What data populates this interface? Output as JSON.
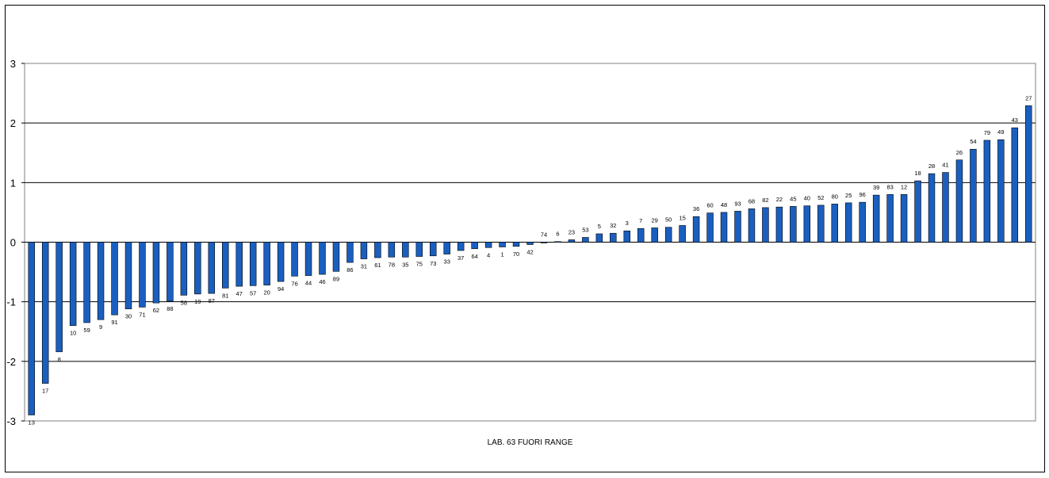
{
  "chart_data": {
    "type": "bar",
    "xlabel": "LAB. 63 FUORI RANGE",
    "ylabel": "",
    "ylim": [
      -3,
      3
    ],
    "yticks": [
      3,
      2,
      1,
      0,
      -1,
      -2,
      -3
    ],
    "grid": true,
    "bar_color": "#1a5fbf",
    "categories": [
      "13",
      "17",
      "8",
      "10",
      "59",
      "9",
      "91",
      "30",
      "71",
      "62",
      "88",
      "58",
      "19",
      "87",
      "81",
      "47",
      "57",
      "20",
      "94",
      "76",
      "44",
      "46",
      "89",
      "86",
      "31",
      "61",
      "78",
      "35",
      "75",
      "73",
      "33",
      "37",
      "64",
      "4",
      "1",
      "70",
      "42",
      "74",
      "6",
      "23",
      "53",
      "5",
      "32",
      "3",
      "7",
      "29",
      "50",
      "15",
      "36",
      "60",
      "48",
      "93",
      "68",
      "82",
      "22",
      "45",
      "40",
      "52",
      "80",
      "25",
      "96",
      "39",
      "83",
      "12",
      "18",
      "28",
      "41",
      "26",
      "54",
      "79",
      "49",
      "43",
      "27"
    ],
    "values": [
      -2.9,
      -2.37,
      -1.84,
      -1.4,
      -1.35,
      -1.3,
      -1.22,
      -1.12,
      -1.09,
      -1.02,
      -0.99,
      -0.89,
      -0.87,
      -0.86,
      -0.77,
      -0.74,
      -0.73,
      -0.72,
      -0.66,
      -0.57,
      -0.56,
      -0.54,
      -0.49,
      -0.34,
      -0.28,
      -0.26,
      -0.25,
      -0.25,
      -0.24,
      -0.23,
      -0.2,
      -0.14,
      -0.11,
      -0.09,
      -0.08,
      -0.07,
      -0.04,
      0.0,
      0.01,
      0.04,
      0.08,
      0.14,
      0.15,
      0.19,
      0.23,
      0.24,
      0.25,
      0.28,
      0.43,
      0.49,
      0.5,
      0.52,
      0.56,
      0.58,
      0.59,
      0.6,
      0.61,
      0.62,
      0.64,
      0.66,
      0.67,
      0.79,
      0.8,
      0.8,
      1.03,
      1.15,
      1.17,
      1.38,
      1.56,
      1.71,
      1.72,
      1.92,
      2.29
    ]
  }
}
